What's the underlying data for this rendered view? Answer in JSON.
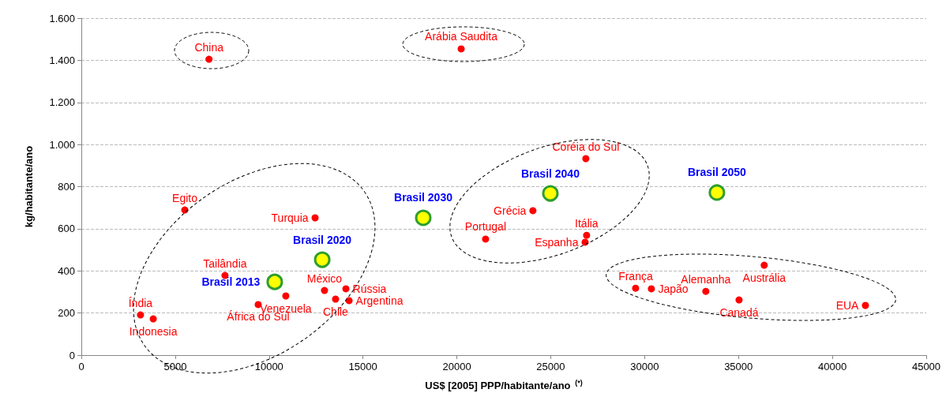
{
  "chart_data": {
    "type": "scatter",
    "xlabel": "US$ [2005] PPP/habitante/ano $^{(*)}$",
    "ylabel": "kg/habitante/ano",
    "xlim": [
      0,
      45000
    ],
    "xticks": [
      0,
      5000,
      10000,
      15000,
      20000,
      25000,
      30000,
      35000,
      40000,
      45000
    ],
    "ylim": [
      0,
      1600
    ],
    "yticks": [
      0,
      200,
      400,
      600,
      800,
      {
        "value": 1000,
        "label": "1.000"
      },
      {
        "value": 1200,
        "label": "1.200"
      },
      {
        "value": 1400,
        "label": "1.400"
      },
      {
        "value": 1600,
        "label": "1.600"
      }
    ],
    "grid": "y",
    "marker": "circle",
    "series": [
      {
        "color": "#ff0000",
        "x": [
          6800,
          20230,
          26870,
          5510,
          12450,
          24050,
          21530,
          26910,
          26830,
          7650,
          12950,
          14090,
          10890,
          14260,
          13540,
          9420,
          3150,
          3830,
          29520,
          30360,
          33260,
          36370,
          35030,
          41760
        ],
        "values": [
          1405,
          1454,
          933,
          689,
          652,
          686,
          551,
          569,
          536,
          378,
          307,
          315,
          281,
          259,
          266,
          240,
          191,
          172,
          318,
          315,
          303,
          427,
          262,
          236
        ],
        "value_labels": [
          "China",
          "Arábia Saudita",
          "Coréia do Sul",
          "Egito",
          "Turquia",
          "Grécia",
          "Portugal",
          "Itália",
          "Espanha",
          "Tailândia",
          "México",
          "Rússia",
          "Venezuela",
          "Argentina",
          "Chile",
          "África do Sul",
          "Índia",
          "Indonesia",
          "França",
          "Japão",
          "Alemanha",
          "Austrália",
          "Canadá",
          "EUA"
        ]
      },
      {
        "color": "#ffff00",
        "x": [
          10300,
          12830,
          18210,
          24980,
          33850
        ],
        "values": [
          348,
          453,
          652,
          768,
          772
        ],
        "value_labels": [
          "Brasil 2013",
          "Brasil 2020",
          "Brasil 2030",
          "Brasil 2040",
          "Brasil 2050"
        ]
      }
    ]
  }
}
